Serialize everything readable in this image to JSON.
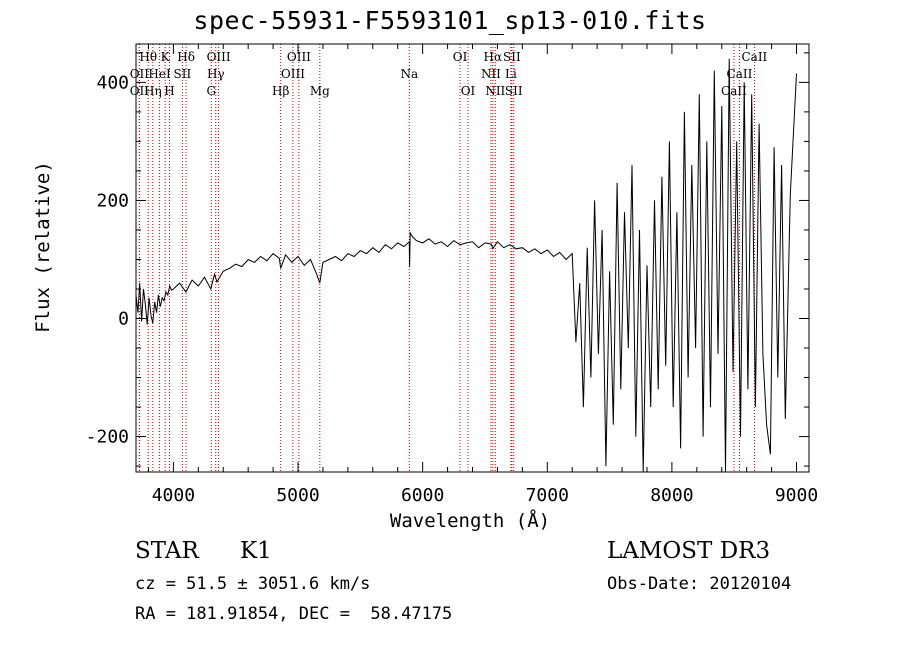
{
  "chart_data": {
    "type": "line",
    "title": "spec-55931-F5593101_sp13-010.fits",
    "xlabel": "Wavelength (Å)",
    "ylabel": "Flux (relative)",
    "xlim": [
      3700,
      9100
    ],
    "ylim": [
      -260,
      465
    ],
    "x_ticks": [
      4000,
      5000,
      6000,
      7000,
      8000,
      9000
    ],
    "y_ticks": [
      -200,
      0,
      200,
      400
    ],
    "series": [
      {
        "name": "flux",
        "x": [
          3700,
          3715,
          3730,
          3745,
          3760,
          3775,
          3790,
          3805,
          3820,
          3835,
          3850,
          3865,
          3880,
          3895,
          3910,
          3925,
          3940,
          3955,
          3970,
          3985,
          4000,
          4050,
          4100,
          4150,
          4200,
          4250,
          4300,
          4330,
          4350,
          4400,
          4450,
          4500,
          4550,
          4600,
          4650,
          4700,
          4750,
          4800,
          4850,
          4861,
          4900,
          4950,
          5000,
          5050,
          5100,
          5150,
          5175,
          5200,
          5250,
          5300,
          5350,
          5400,
          5450,
          5500,
          5550,
          5600,
          5650,
          5700,
          5750,
          5800,
          5850,
          5893,
          5895,
          5900,
          5920,
          5950,
          6000,
          6050,
          6100,
          6150,
          6200,
          6250,
          6300,
          6350,
          6400,
          6450,
          6500,
          6550,
          6563,
          6600,
          6650,
          6700,
          6750,
          6800,
          6850,
          6900,
          6950,
          7000,
          7050,
          7100,
          7150,
          7200,
          7230,
          7260,
          7290,
          7320,
          7350,
          7380,
          7410,
          7440,
          7470,
          7500,
          7530,
          7560,
          7590,
          7620,
          7650,
          7680,
          7710,
          7740,
          7770,
          7800,
          7830,
          7860,
          7890,
          7920,
          7950,
          7980,
          8010,
          8040,
          8070,
          8100,
          8130,
          8160,
          8190,
          8220,
          8250,
          8280,
          8310,
          8340,
          8370,
          8400,
          8430,
          8460,
          8490,
          8520,
          8550,
          8580,
          8610,
          8640,
          8670,
          8700,
          8730,
          8760,
          8790,
          8820,
          8850,
          8880,
          8910,
          8950,
          9000
        ],
        "y": [
          40,
          10,
          60,
          -5,
          50,
          25,
          -10,
          35,
          5,
          -8,
          28,
          10,
          40,
          20,
          35,
          30,
          45,
          40,
          55,
          48,
          50,
          60,
          45,
          65,
          55,
          70,
          50,
          75,
          62,
          80,
          85,
          92,
          88,
          100,
          95,
          105,
          98,
          110,
          102,
          85,
          108,
          95,
          105,
          90,
          100,
          75,
          60,
          95,
          100,
          105,
          98,
          110,
          105,
          115,
          110,
          120,
          112,
          125,
          118,
          128,
          122,
          130,
          88,
          145,
          138,
          132,
          128,
          135,
          126,
          130,
          122,
          132,
          125,
          128,
          130,
          120,
          128,
          126,
          118,
          130,
          120,
          125,
          118,
          120,
          112,
          118,
          110,
          116,
          105,
          112,
          100,
          110,
          -40,
          60,
          -150,
          120,
          -100,
          200,
          -60,
          150,
          -250,
          80,
          -180,
          230,
          -120,
          180,
          -50,
          260,
          -200,
          150,
          -260,
          90,
          -150,
          200,
          -120,
          240,
          -80,
          300,
          -150,
          180,
          -220,
          350,
          -100,
          260,
          -50,
          380,
          -200,
          300,
          -150,
          420,
          -60,
          360,
          -260,
          440,
          -90,
          300,
          -200,
          400,
          -120,
          380,
          -150,
          330,
          -60,
          -180,
          -230,
          290,
          -100,
          260,
          -170,
          210,
          415
        ]
      }
    ],
    "lines": [
      {
        "name": "Hθ",
        "x": 3798,
        "row": 1
      },
      {
        "name": "OII",
        "x": 3727,
        "row": 2
      },
      {
        "name": "OII",
        "x": 3727,
        "row": 3
      },
      {
        "name": "Hη",
        "x": 3835,
        "row": 3
      },
      {
        "name": "K",
        "x": 3934,
        "row": 1
      },
      {
        "name": "H",
        "x": 3969,
        "row": 3
      },
      {
        "name": "HeI",
        "x": 3889,
        "row": 2
      },
      {
        "name": "SII",
        "x": 4072,
        "row": 2
      },
      {
        "name": "Hδ",
        "x": 4102,
        "row": 1
      },
      {
        "name": "OIII",
        "x": 4363,
        "row": 1
      },
      {
        "name": "Hγ",
        "x": 4340,
        "row": 2
      },
      {
        "name": "G",
        "x": 4304,
        "row": 3
      },
      {
        "name": "Hβ",
        "x": 4861,
        "row": 3
      },
      {
        "name": "OIII",
        "x": 5007,
        "row": 1
      },
      {
        "name": "OIII",
        "x": 4959,
        "row": 2
      },
      {
        "name": "Mg",
        "x": 5175,
        "row": 3
      },
      {
        "name": "Na",
        "x": 5893,
        "row": 2
      },
      {
        "name": "OI",
        "x": 6300,
        "row": 1
      },
      {
        "name": "OI",
        "x": 6364,
        "row": 3
      },
      {
        "name": "Hα",
        "x": 6563,
        "row": 1
      },
      {
        "name": "SII",
        "x": 6716,
        "row": 1
      },
      {
        "name": "NII",
        "x": 6548,
        "row": 2
      },
      {
        "name": "Li",
        "x": 6708,
        "row": 2
      },
      {
        "name": "NII",
        "x": 6583,
        "row": 3
      },
      {
        "name": "SII",
        "x": 6731,
        "row": 3
      },
      {
        "name": "CaII",
        "x": 8662,
        "row": 1
      },
      {
        "name": "CaII",
        "x": 8542,
        "row": 2
      },
      {
        "name": "CaII",
        "x": 8498,
        "row": 3
      }
    ]
  },
  "info": {
    "class": "STAR",
    "subclass": "K1",
    "survey": "LAMOST DR3",
    "velocity": "cz = 51.5 ± 3051.6 km/s",
    "obs_date": "Obs-Date: 20120104",
    "coords": "RA = 181.91854, DEC =  58.47175"
  }
}
